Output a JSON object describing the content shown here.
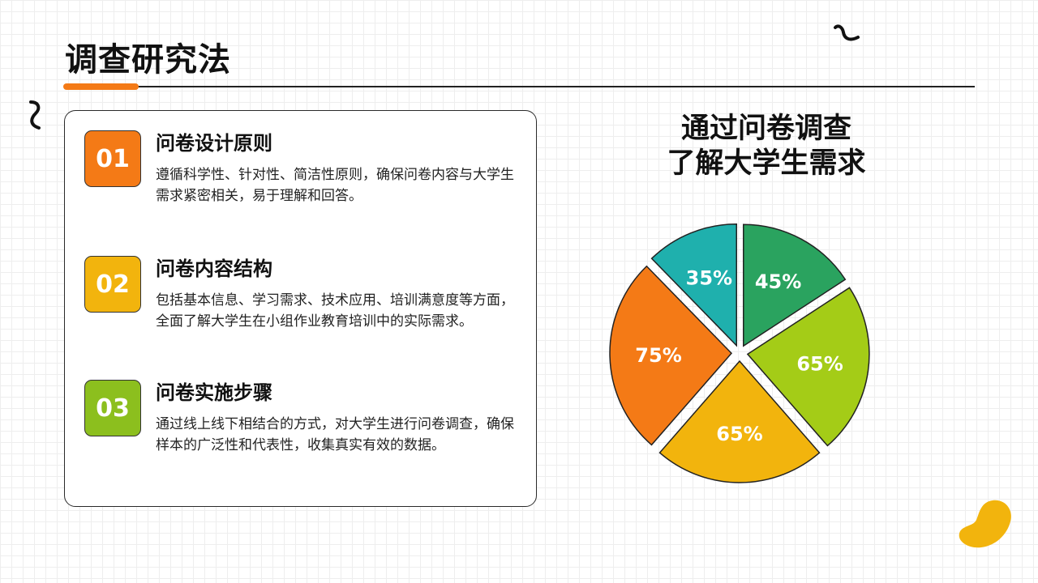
{
  "page": {
    "title": "调查研究法"
  },
  "items": [
    {
      "number": "01",
      "title": "问卷设计原则",
      "description": "遵循科学性、针对性、简洁性原则，确保问卷内容与大学生需求紧密相关，易于理解和回答。",
      "color": "#f47a16"
    },
    {
      "number": "02",
      "title": "问卷内容结构",
      "description": "包括基本信息、学习需求、技术应用、培训满意度等方面，全面了解大学生在小组作业教育培训中的实际需求。",
      "color": "#f2b40d"
    },
    {
      "number": "03",
      "title": "问卷实施步骤",
      "description": "通过线上线下相结合的方式，对大学生进行问卷调查，确保样本的广泛性和代表性，收集真实有效的数据。",
      "color": "#8cbf1e"
    }
  ],
  "chart_data": {
    "type": "pie",
    "title_lines": [
      "通过问卷调查",
      "了解大学生需求"
    ],
    "slices": [
      {
        "label": "35%",
        "value": 35,
        "color": "#1fb0ad"
      },
      {
        "label": "45%",
        "value": 45,
        "color": "#2aa35f"
      },
      {
        "label": "65%",
        "value": 65,
        "color": "#a4cc17"
      },
      {
        "label": "65%",
        "value": 65,
        "color": "#f2b40d"
      },
      {
        "label": "75%",
        "value": 75,
        "color": "#f47a16"
      }
    ]
  },
  "colors": {
    "accent": "#f47a16",
    "decoration": "#f2b40d"
  }
}
